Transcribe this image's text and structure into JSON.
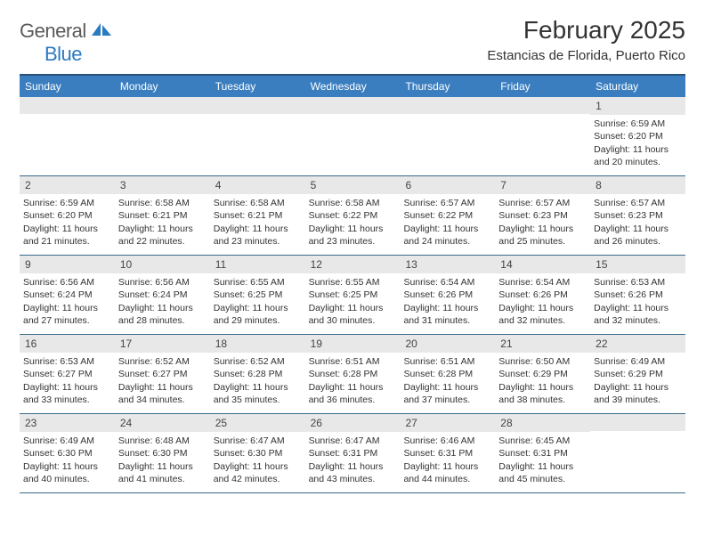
{
  "logo": {
    "word1": "General",
    "word2": "Blue"
  },
  "title": "February 2025",
  "location": "Estancias de Florida, Puerto Rico",
  "colors": {
    "header_bg": "#3a7ec0",
    "header_border": "#29527a",
    "row_border": "#3a6a8a",
    "daynum_bg": "#e8e8e8",
    "logo_blue": "#2a7ac0",
    "text": "#333333"
  },
  "days_of_week": [
    "Sunday",
    "Monday",
    "Tuesday",
    "Wednesday",
    "Thursday",
    "Friday",
    "Saturday"
  ],
  "weeks": [
    [
      null,
      null,
      null,
      null,
      null,
      null,
      {
        "n": "1",
        "sunrise": "6:59 AM",
        "sunset": "6:20 PM",
        "daylight": "11 hours and 20 minutes."
      }
    ],
    [
      {
        "n": "2",
        "sunrise": "6:59 AM",
        "sunset": "6:20 PM",
        "daylight": "11 hours and 21 minutes."
      },
      {
        "n": "3",
        "sunrise": "6:58 AM",
        "sunset": "6:21 PM",
        "daylight": "11 hours and 22 minutes."
      },
      {
        "n": "4",
        "sunrise": "6:58 AM",
        "sunset": "6:21 PM",
        "daylight": "11 hours and 23 minutes."
      },
      {
        "n": "5",
        "sunrise": "6:58 AM",
        "sunset": "6:22 PM",
        "daylight": "11 hours and 23 minutes."
      },
      {
        "n": "6",
        "sunrise": "6:57 AM",
        "sunset": "6:22 PM",
        "daylight": "11 hours and 24 minutes."
      },
      {
        "n": "7",
        "sunrise": "6:57 AM",
        "sunset": "6:23 PM",
        "daylight": "11 hours and 25 minutes."
      },
      {
        "n": "8",
        "sunrise": "6:57 AM",
        "sunset": "6:23 PM",
        "daylight": "11 hours and 26 minutes."
      }
    ],
    [
      {
        "n": "9",
        "sunrise": "6:56 AM",
        "sunset": "6:24 PM",
        "daylight": "11 hours and 27 minutes."
      },
      {
        "n": "10",
        "sunrise": "6:56 AM",
        "sunset": "6:24 PM",
        "daylight": "11 hours and 28 minutes."
      },
      {
        "n": "11",
        "sunrise": "6:55 AM",
        "sunset": "6:25 PM",
        "daylight": "11 hours and 29 minutes."
      },
      {
        "n": "12",
        "sunrise": "6:55 AM",
        "sunset": "6:25 PM",
        "daylight": "11 hours and 30 minutes."
      },
      {
        "n": "13",
        "sunrise": "6:54 AM",
        "sunset": "6:26 PM",
        "daylight": "11 hours and 31 minutes."
      },
      {
        "n": "14",
        "sunrise": "6:54 AM",
        "sunset": "6:26 PM",
        "daylight": "11 hours and 32 minutes."
      },
      {
        "n": "15",
        "sunrise": "6:53 AM",
        "sunset": "6:26 PM",
        "daylight": "11 hours and 32 minutes."
      }
    ],
    [
      {
        "n": "16",
        "sunrise": "6:53 AM",
        "sunset": "6:27 PM",
        "daylight": "11 hours and 33 minutes."
      },
      {
        "n": "17",
        "sunrise": "6:52 AM",
        "sunset": "6:27 PM",
        "daylight": "11 hours and 34 minutes."
      },
      {
        "n": "18",
        "sunrise": "6:52 AM",
        "sunset": "6:28 PM",
        "daylight": "11 hours and 35 minutes."
      },
      {
        "n": "19",
        "sunrise": "6:51 AM",
        "sunset": "6:28 PM",
        "daylight": "11 hours and 36 minutes."
      },
      {
        "n": "20",
        "sunrise": "6:51 AM",
        "sunset": "6:28 PM",
        "daylight": "11 hours and 37 minutes."
      },
      {
        "n": "21",
        "sunrise": "6:50 AM",
        "sunset": "6:29 PM",
        "daylight": "11 hours and 38 minutes."
      },
      {
        "n": "22",
        "sunrise": "6:49 AM",
        "sunset": "6:29 PM",
        "daylight": "11 hours and 39 minutes."
      }
    ],
    [
      {
        "n": "23",
        "sunrise": "6:49 AM",
        "sunset": "6:30 PM",
        "daylight": "11 hours and 40 minutes."
      },
      {
        "n": "24",
        "sunrise": "6:48 AM",
        "sunset": "6:30 PM",
        "daylight": "11 hours and 41 minutes."
      },
      {
        "n": "25",
        "sunrise": "6:47 AM",
        "sunset": "6:30 PM",
        "daylight": "11 hours and 42 minutes."
      },
      {
        "n": "26",
        "sunrise": "6:47 AM",
        "sunset": "6:31 PM",
        "daylight": "11 hours and 43 minutes."
      },
      {
        "n": "27",
        "sunrise": "6:46 AM",
        "sunset": "6:31 PM",
        "daylight": "11 hours and 44 minutes."
      },
      {
        "n": "28",
        "sunrise": "6:45 AM",
        "sunset": "6:31 PM",
        "daylight": "11 hours and 45 minutes."
      },
      null
    ]
  ],
  "labels": {
    "sunrise": "Sunrise: ",
    "sunset": "Sunset: ",
    "daylight": "Daylight: "
  }
}
